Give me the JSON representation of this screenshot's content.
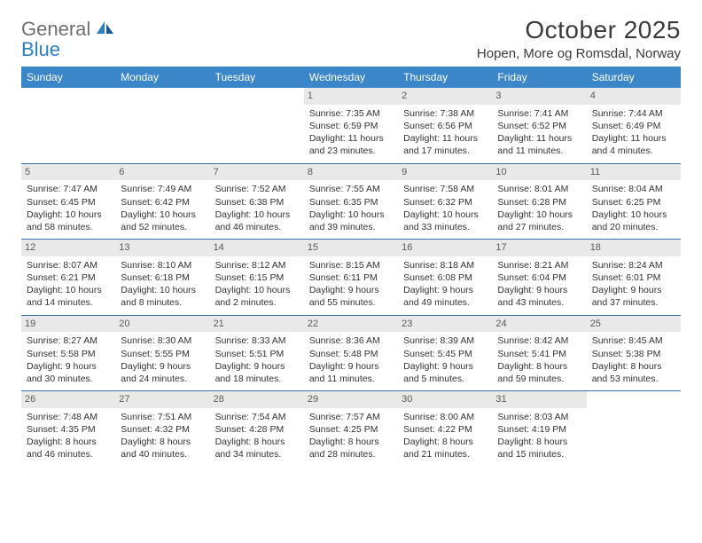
{
  "brand": {
    "word1": "General",
    "word2": "Blue"
  },
  "title": "October 2025",
  "location": "Hopen, More og Romsdal, Norway",
  "colors": {
    "header_bg": "#3a86c8",
    "header_text": "#ffffff",
    "week_border": "#3a6ea8",
    "daynum_bg": "#e9e9e9",
    "daynum_text": "#5a5a5a",
    "body_text": "#333333",
    "logo_gray": "#6f6f6f",
    "logo_blue": "#2f7fbf"
  },
  "day_labels": [
    "Sunday",
    "Monday",
    "Tuesday",
    "Wednesday",
    "Thursday",
    "Friday",
    "Saturday"
  ],
  "weeks": [
    [
      {
        "blank": true
      },
      {
        "blank": true
      },
      {
        "blank": true
      },
      {
        "n": "1",
        "sr": "Sunrise: 7:35 AM",
        "ss": "Sunset: 6:59 PM",
        "d1": "Daylight: 11 hours",
        "d2": "and 23 minutes."
      },
      {
        "n": "2",
        "sr": "Sunrise: 7:38 AM",
        "ss": "Sunset: 6:56 PM",
        "d1": "Daylight: 11 hours",
        "d2": "and 17 minutes."
      },
      {
        "n": "3",
        "sr": "Sunrise: 7:41 AM",
        "ss": "Sunset: 6:52 PM",
        "d1": "Daylight: 11 hours",
        "d2": "and 11 minutes."
      },
      {
        "n": "4",
        "sr": "Sunrise: 7:44 AM",
        "ss": "Sunset: 6:49 PM",
        "d1": "Daylight: 11 hours",
        "d2": "and 4 minutes."
      }
    ],
    [
      {
        "n": "5",
        "sr": "Sunrise: 7:47 AM",
        "ss": "Sunset: 6:45 PM",
        "d1": "Daylight: 10 hours",
        "d2": "and 58 minutes."
      },
      {
        "n": "6",
        "sr": "Sunrise: 7:49 AM",
        "ss": "Sunset: 6:42 PM",
        "d1": "Daylight: 10 hours",
        "d2": "and 52 minutes."
      },
      {
        "n": "7",
        "sr": "Sunrise: 7:52 AM",
        "ss": "Sunset: 6:38 PM",
        "d1": "Daylight: 10 hours",
        "d2": "and 46 minutes."
      },
      {
        "n": "8",
        "sr": "Sunrise: 7:55 AM",
        "ss": "Sunset: 6:35 PM",
        "d1": "Daylight: 10 hours",
        "d2": "and 39 minutes."
      },
      {
        "n": "9",
        "sr": "Sunrise: 7:58 AM",
        "ss": "Sunset: 6:32 PM",
        "d1": "Daylight: 10 hours",
        "d2": "and 33 minutes."
      },
      {
        "n": "10",
        "sr": "Sunrise: 8:01 AM",
        "ss": "Sunset: 6:28 PM",
        "d1": "Daylight: 10 hours",
        "d2": "and 27 minutes."
      },
      {
        "n": "11",
        "sr": "Sunrise: 8:04 AM",
        "ss": "Sunset: 6:25 PM",
        "d1": "Daylight: 10 hours",
        "d2": "and 20 minutes."
      }
    ],
    [
      {
        "n": "12",
        "sr": "Sunrise: 8:07 AM",
        "ss": "Sunset: 6:21 PM",
        "d1": "Daylight: 10 hours",
        "d2": "and 14 minutes."
      },
      {
        "n": "13",
        "sr": "Sunrise: 8:10 AM",
        "ss": "Sunset: 6:18 PM",
        "d1": "Daylight: 10 hours",
        "d2": "and 8 minutes."
      },
      {
        "n": "14",
        "sr": "Sunrise: 8:12 AM",
        "ss": "Sunset: 6:15 PM",
        "d1": "Daylight: 10 hours",
        "d2": "and 2 minutes."
      },
      {
        "n": "15",
        "sr": "Sunrise: 8:15 AM",
        "ss": "Sunset: 6:11 PM",
        "d1": "Daylight: 9 hours",
        "d2": "and 55 minutes."
      },
      {
        "n": "16",
        "sr": "Sunrise: 8:18 AM",
        "ss": "Sunset: 6:08 PM",
        "d1": "Daylight: 9 hours",
        "d2": "and 49 minutes."
      },
      {
        "n": "17",
        "sr": "Sunrise: 8:21 AM",
        "ss": "Sunset: 6:04 PM",
        "d1": "Daylight: 9 hours",
        "d2": "and 43 minutes."
      },
      {
        "n": "18",
        "sr": "Sunrise: 8:24 AM",
        "ss": "Sunset: 6:01 PM",
        "d1": "Daylight: 9 hours",
        "d2": "and 37 minutes."
      }
    ],
    [
      {
        "n": "19",
        "sr": "Sunrise: 8:27 AM",
        "ss": "Sunset: 5:58 PM",
        "d1": "Daylight: 9 hours",
        "d2": "and 30 minutes."
      },
      {
        "n": "20",
        "sr": "Sunrise: 8:30 AM",
        "ss": "Sunset: 5:55 PM",
        "d1": "Daylight: 9 hours",
        "d2": "and 24 minutes."
      },
      {
        "n": "21",
        "sr": "Sunrise: 8:33 AM",
        "ss": "Sunset: 5:51 PM",
        "d1": "Daylight: 9 hours",
        "d2": "and 18 minutes."
      },
      {
        "n": "22",
        "sr": "Sunrise: 8:36 AM",
        "ss": "Sunset: 5:48 PM",
        "d1": "Daylight: 9 hours",
        "d2": "and 11 minutes."
      },
      {
        "n": "23",
        "sr": "Sunrise: 8:39 AM",
        "ss": "Sunset: 5:45 PM",
        "d1": "Daylight: 9 hours",
        "d2": "and 5 minutes."
      },
      {
        "n": "24",
        "sr": "Sunrise: 8:42 AM",
        "ss": "Sunset: 5:41 PM",
        "d1": "Daylight: 8 hours",
        "d2": "and 59 minutes."
      },
      {
        "n": "25",
        "sr": "Sunrise: 8:45 AM",
        "ss": "Sunset: 5:38 PM",
        "d1": "Daylight: 8 hours",
        "d2": "and 53 minutes."
      }
    ],
    [
      {
        "n": "26",
        "sr": "Sunrise: 7:48 AM",
        "ss": "Sunset: 4:35 PM",
        "d1": "Daylight: 8 hours",
        "d2": "and 46 minutes."
      },
      {
        "n": "27",
        "sr": "Sunrise: 7:51 AM",
        "ss": "Sunset: 4:32 PM",
        "d1": "Daylight: 8 hours",
        "d2": "and 40 minutes."
      },
      {
        "n": "28",
        "sr": "Sunrise: 7:54 AM",
        "ss": "Sunset: 4:28 PM",
        "d1": "Daylight: 8 hours",
        "d2": "and 34 minutes."
      },
      {
        "n": "29",
        "sr": "Sunrise: 7:57 AM",
        "ss": "Sunset: 4:25 PM",
        "d1": "Daylight: 8 hours",
        "d2": "and 28 minutes."
      },
      {
        "n": "30",
        "sr": "Sunrise: 8:00 AM",
        "ss": "Sunset: 4:22 PM",
        "d1": "Daylight: 8 hours",
        "d2": "and 21 minutes."
      },
      {
        "n": "31",
        "sr": "Sunrise: 8:03 AM",
        "ss": "Sunset: 4:19 PM",
        "d1": "Daylight: 8 hours",
        "d2": "and 15 minutes."
      },
      {
        "blank": true
      }
    ]
  ]
}
